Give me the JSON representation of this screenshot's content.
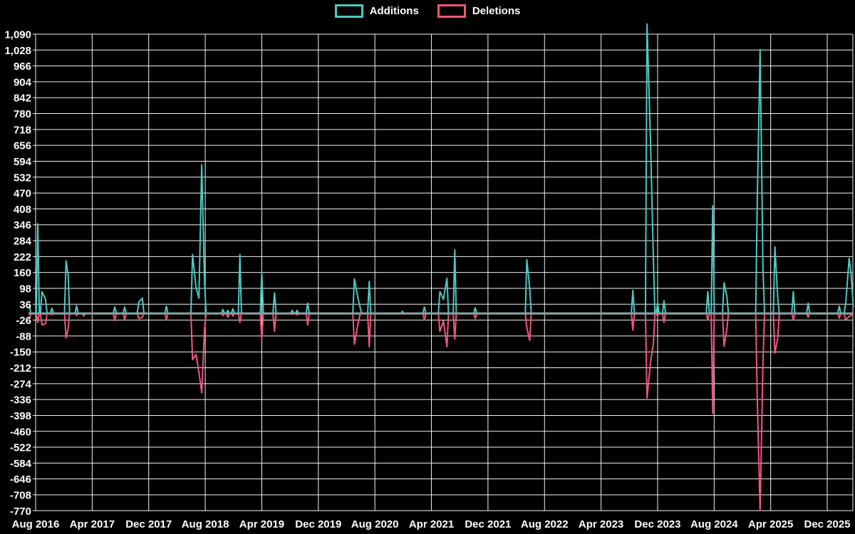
{
  "legend": [
    {
      "label": "Additions",
      "color": "#4DC9C1"
    },
    {
      "label": "Deletions",
      "color": "#F2577E"
    }
  ],
  "chart_data": {
    "type": "line",
    "title": "",
    "xlabel": "",
    "ylabel": "",
    "x_axis": {
      "tick_labels": [
        "Aug 2016",
        "Apr 2017",
        "Dec 2017",
        "Aug 2018",
        "Apr 2019",
        "Dec 2019",
        "Aug 2020",
        "Apr 2021",
        "Dec 2021",
        "Aug 2022",
        "Apr 2023",
        "Dec 2023",
        "Aug 2024",
        "Apr 2025",
        "Dec 2025"
      ],
      "months_per_tick": 8,
      "x_unit": "months since Aug 2016"
    },
    "y_axis": {
      "tick_labels": [
        "1,090",
        "1,028",
        "966",
        "904",
        "842",
        "780",
        "718",
        "656",
        "594",
        "532",
        "470",
        "408",
        "346",
        "284",
        "222",
        "160",
        "98",
        "36",
        "-26",
        "-88",
        "-150",
        "-212",
        "-274",
        "-336",
        "-398",
        "-460",
        "-522",
        "-584",
        "-646",
        "-708",
        "-770"
      ],
      "min": -770,
      "max": 1090,
      "step": 62,
      "grid": true
    },
    "series_names": [
      "Additions",
      "Deletions"
    ],
    "baseline_value": 0,
    "events_format": [
      "x_months_since_aug2016",
      "additions_peak",
      "deletions_peak"
    ],
    "events": [
      [
        -0.9,
        30,
        -22
      ],
      [
        0.3,
        350,
        -35
      ],
      [
        0.9,
        85,
        -45
      ],
      [
        1.4,
        55,
        -40
      ],
      [
        2.3,
        20,
        -5
      ],
      [
        4.3,
        205,
        -95
      ],
      [
        4.6,
        150,
        -60
      ],
      [
        5.8,
        30,
        -8
      ],
      [
        6.8,
        0,
        -10
      ],
      [
        11.2,
        25,
        -28
      ],
      [
        12.6,
        25,
        -25
      ],
      [
        14.6,
        45,
        -20
      ],
      [
        15.1,
        60,
        -15
      ],
      [
        18.5,
        28,
        -25
      ],
      [
        22.2,
        230,
        -180
      ],
      [
        22.7,
        100,
        -160
      ],
      [
        23.1,
        60,
        -230
      ],
      [
        23.5,
        580,
        -310
      ],
      [
        23.9,
        120,
        -60
      ],
      [
        26.5,
        15,
        -8
      ],
      [
        27.2,
        12,
        -15
      ],
      [
        27.9,
        18,
        -10
      ],
      [
        28.9,
        230,
        -35
      ],
      [
        32.0,
        160,
        -100
      ],
      [
        33.8,
        80,
        -70
      ],
      [
        36.3,
        12,
        -4
      ],
      [
        37.0,
        12,
        -6
      ],
      [
        38.5,
        40,
        -45
      ],
      [
        45.1,
        135,
        -120
      ],
      [
        45.6,
        60,
        -40
      ],
      [
        45.9,
        25,
        -5
      ],
      [
        47.2,
        125,
        -130
      ],
      [
        51.9,
        8,
        -3
      ],
      [
        55.0,
        25,
        -25
      ],
      [
        57.2,
        85,
        -70
      ],
      [
        57.7,
        55,
        -30
      ],
      [
        58.2,
        137,
        -130
      ],
      [
        59.3,
        248,
        -100
      ],
      [
        62.2,
        22,
        -20
      ],
      [
        69.5,
        210,
        -55
      ],
      [
        69.9,
        100,
        -105
      ],
      [
        84.5,
        90,
        -65
      ],
      [
        86.5,
        1130,
        -330
      ],
      [
        87.0,
        670,
        -190
      ],
      [
        87.4,
        215,
        -120
      ],
      [
        88.0,
        40,
        -10
      ],
      [
        88.9,
        50,
        -35
      ],
      [
        95.1,
        85,
        -25
      ],
      [
        95.8,
        420,
        -390
      ],
      [
        97.4,
        120,
        -128
      ],
      [
        97.8,
        65,
        -60
      ],
      [
        102.1,
        430,
        -330
      ],
      [
        102.5,
        1030,
        -770
      ],
      [
        102.9,
        180,
        -195
      ],
      [
        104.6,
        260,
        -155
      ],
      [
        105.0,
        60,
        -95
      ],
      [
        107.2,
        85,
        -25
      ],
      [
        109.3,
        40,
        -15
      ],
      [
        113.7,
        28,
        -18
      ],
      [
        114.6,
        35,
        -25
      ],
      [
        115.1,
        215,
        -12
      ],
      [
        115.35,
        160,
        -8
      ],
      [
        115.7,
        25,
        -5
      ]
    ],
    "legend_position": "top-center",
    "colors": {
      "additions": "#4DC9C1",
      "deletions": "#F2577E",
      "baseline": "#8CA4A6",
      "grid": "#F2F2F2",
      "background": "#000000",
      "tick_text": "#FFFFFF"
    }
  }
}
